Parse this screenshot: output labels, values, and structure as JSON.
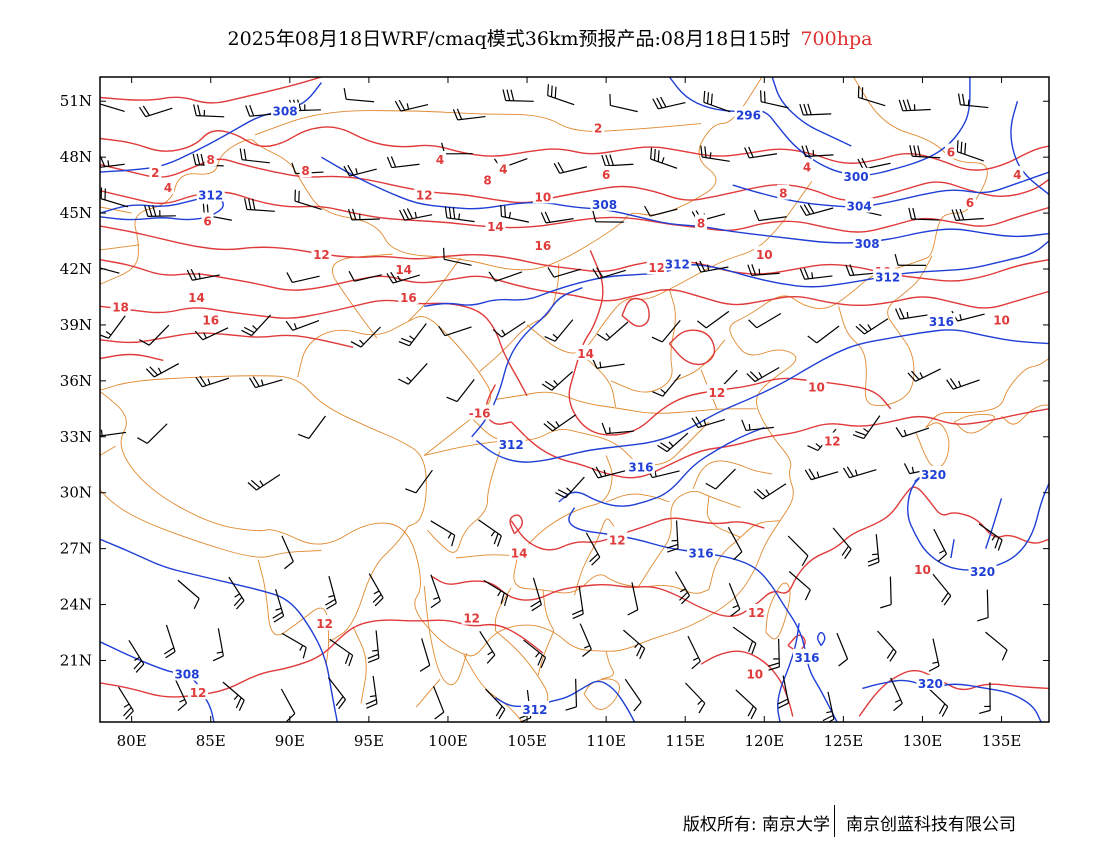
{
  "title": {
    "main": "2025年08月18日WRF/cmaq模式36km预报产品:08月18日15时",
    "level": "700hpa"
  },
  "map": {
    "lon_labels": [
      "80E",
      "85E",
      "90E",
      "95E",
      "100E",
      "105E",
      "110E",
      "115E",
      "120E",
      "125E",
      "130E",
      "135E"
    ],
    "lat_labels": [
      "51N",
      "48N",
      "45N",
      "42N",
      "39N",
      "36N",
      "33N",
      "30N",
      "27N",
      "24N",
      "21N"
    ],
    "colors": {
      "temperature": "#e03a3a",
      "geopotential": "#1f3fd6",
      "boundary": "#e08a30",
      "wind": "#000000"
    },
    "temperature_labels": [
      "2",
      "4",
      "6",
      "8",
      "10",
      "12",
      "14",
      "16",
      "18",
      "-16",
      "4",
      "6",
      "8",
      "10",
      "12",
      "14",
      "16",
      "18",
      "6",
      "4",
      "2"
    ],
    "height_labels": [
      "296",
      "300",
      "304",
      "308",
      "312",
      "316",
      "320"
    ],
    "temp_texts": [
      {
        "t": "2",
        "lon": 81.5,
        "lat": 47.2
      },
      {
        "t": "4",
        "lon": 82.3,
        "lat": 46.4
      },
      {
        "t": "8",
        "lon": 85.0,
        "lat": 47.9
      },
      {
        "t": "8",
        "lon": 91.0,
        "lat": 47.3
      },
      {
        "t": "6",
        "lon": 84.8,
        "lat": 44.6
      },
      {
        "t": "12",
        "lon": 92.0,
        "lat": 42.8
      },
      {
        "t": "14",
        "lon": 84.1,
        "lat": 40.5
      },
      {
        "t": "18",
        "lon": 79.3,
        "lat": 40.0
      },
      {
        "t": "16",
        "lon": 85.0,
        "lat": 39.3
      },
      {
        "t": "4",
        "lon": 99.5,
        "lat": 47.9
      },
      {
        "t": "8",
        "lon": 102.5,
        "lat": 46.8
      },
      {
        "t": "10",
        "lon": 106.0,
        "lat": 45.9
      },
      {
        "t": "12",
        "lon": 98.5,
        "lat": 46.0
      },
      {
        "t": "14",
        "lon": 103.0,
        "lat": 44.3
      },
      {
        "t": "14",
        "lon": 97.2,
        "lat": 42.0
      },
      {
        "t": "16",
        "lon": 106.0,
        "lat": 43.3
      },
      {
        "t": "16",
        "lon": 97.5,
        "lat": 40.5
      },
      {
        "t": "4",
        "lon": 103.5,
        "lat": 47.4
      },
      {
        "t": "2",
        "lon": 109.5,
        "lat": 49.6
      },
      {
        "t": "6",
        "lon": 110.0,
        "lat": 47.1
      },
      {
        "t": "8",
        "lon": 116.0,
        "lat": 44.5
      },
      {
        "t": "8",
        "lon": 121.2,
        "lat": 46.1
      },
      {
        "t": "4",
        "lon": 122.7,
        "lat": 47.5
      },
      {
        "t": "10",
        "lon": 120.0,
        "lat": 42.8
      },
      {
        "t": "12",
        "lon": 113.2,
        "lat": 42.1
      },
      {
        "t": "10",
        "lon": 127.5,
        "lat": 41.9
      },
      {
        "t": "6",
        "lon": 131.8,
        "lat": 48.3
      },
      {
        "t": "4",
        "lon": 136.0,
        "lat": 47.1
      },
      {
        "t": "6",
        "lon": 133.0,
        "lat": 45.6
      },
      {
        "t": "10",
        "lon": 135.0,
        "lat": 39.3
      },
      {
        "t": "14",
        "lon": 108.7,
        "lat": 37.5
      },
      {
        "t": "-16",
        "lon": 102.0,
        "lat": 34.3
      },
      {
        "t": "12",
        "lon": 117.0,
        "lat": 35.4
      },
      {
        "t": "10",
        "lon": 123.3,
        "lat": 35.7
      },
      {
        "t": "12",
        "lon": 124.3,
        "lat": 32.8
      },
      {
        "t": "12",
        "lon": 110.7,
        "lat": 27.5
      },
      {
        "t": "14",
        "lon": 104.5,
        "lat": 26.8
      },
      {
        "t": "12",
        "lon": 101.5,
        "lat": 23.3
      },
      {
        "t": "12",
        "lon": 92.2,
        "lat": 23.0
      },
      {
        "t": "12",
        "lon": 84.2,
        "lat": 19.3
      },
      {
        "t": "12",
        "lon": 119.5,
        "lat": 23.6
      },
      {
        "t": "10",
        "lon": 119.4,
        "lat": 20.3
      },
      {
        "t": "10",
        "lon": 130.0,
        "lat": 25.9
      }
    ],
    "hgt_texts": [
      {
        "t": "308",
        "lon": 89.7,
        "lat": 50.5
      },
      {
        "t": "312",
        "lon": 85.0,
        "lat": 46.0
      },
      {
        "t": "308",
        "lon": 109.9,
        "lat": 45.5
      },
      {
        "t": "296",
        "lon": 119.0,
        "lat": 50.3
      },
      {
        "t": "300",
        "lon": 125.8,
        "lat": 47.0
      },
      {
        "t": "304",
        "lon": 126.0,
        "lat": 45.4
      },
      {
        "t": "308",
        "lon": 126.5,
        "lat": 43.4
      },
      {
        "t": "312",
        "lon": 114.5,
        "lat": 42.3
      },
      {
        "t": "312",
        "lon": 127.8,
        "lat": 41.6
      },
      {
        "t": "316",
        "lon": 131.2,
        "lat": 39.2
      },
      {
        "t": "312",
        "lon": 104.0,
        "lat": 32.6
      },
      {
        "t": "316",
        "lon": 112.2,
        "lat": 31.4
      },
      {
        "t": "316",
        "lon": 116.0,
        "lat": 26.8
      },
      {
        "t": "320",
        "lon": 130.7,
        "lat": 31.0
      },
      {
        "t": "320",
        "lon": 133.8,
        "lat": 25.8
      },
      {
        "t": "308",
        "lon": 83.5,
        "lat": 20.3
      },
      {
        "t": "316",
        "lon": 122.7,
        "lat": 21.2
      },
      {
        "t": "320",
        "lon": 130.5,
        "lat": 19.8
      },
      {
        "t": "312",
        "lon": 105.5,
        "lat": 18.4
      }
    ]
  },
  "footer": {
    "left": "版权所有: 南京大学",
    "right": "南京创蓝科技有限公司"
  }
}
